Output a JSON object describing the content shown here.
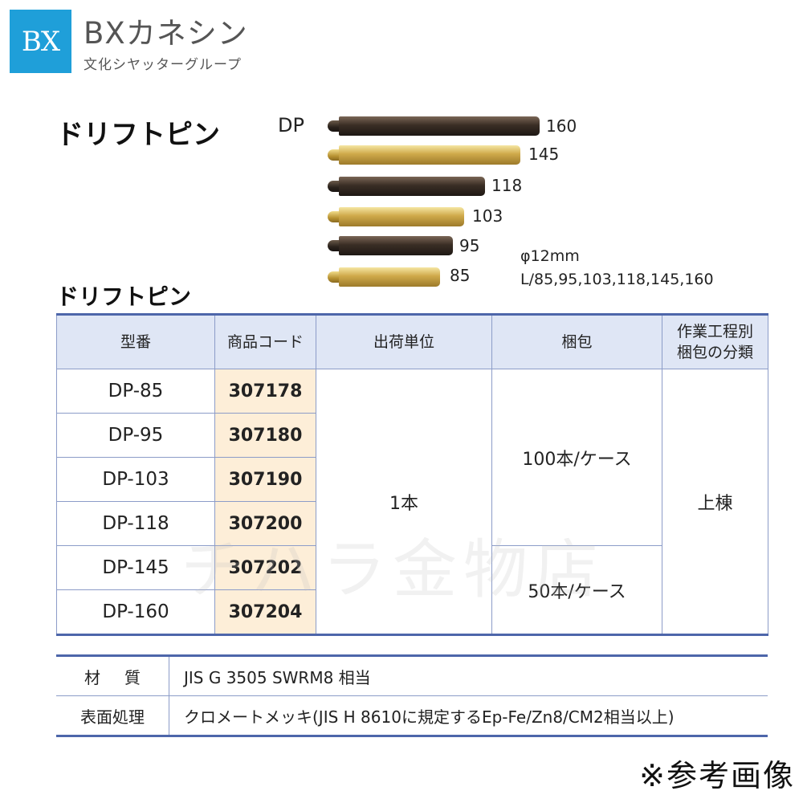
{
  "brand": {
    "logo_text": "BX",
    "name": "BXカネシン",
    "subtitle": "文化シヤッターグループ",
    "logo_color": "#1f9fd9"
  },
  "product": {
    "title": "ドリフトピン",
    "series_label": "DP",
    "pins": [
      {
        "length": "160",
        "finish": "dark"
      },
      {
        "length": "145",
        "finish": "gold"
      },
      {
        "length": "118",
        "finish": "dark"
      },
      {
        "length": "103",
        "finish": "gold"
      },
      {
        "length": "95",
        "finish": "dark"
      },
      {
        "length": "85",
        "finish": "gold"
      }
    ],
    "diameter": "φ12mm",
    "lengths": "L/85,95,103,118,145,160"
  },
  "table": {
    "title": "ドリフトピン",
    "headers": {
      "model": "型番",
      "code": "商品コード",
      "unit": "出荷単位",
      "packing": "梱包",
      "category_line1": "作業工程別",
      "category_line2": "梱包の分類"
    },
    "rows": [
      {
        "model": "DP-85",
        "code": "307178"
      },
      {
        "model": "DP-95",
        "code": "307180"
      },
      {
        "model": "DP-103",
        "code": "307190"
      },
      {
        "model": "DP-118",
        "code": "307200"
      },
      {
        "model": "DP-145",
        "code": "307202"
      },
      {
        "model": "DP-160",
        "code": "307204"
      }
    ],
    "unit": "1本",
    "packing_a": "100本/ケース",
    "packing_b": "50本/ケース",
    "category": "上棟"
  },
  "spec": {
    "material_label": "材質",
    "material_value": "JIS G 3505 SWRM8 相当",
    "surface_label": "表面処理",
    "surface_value": "クロメートメッキ(JIS H 8610に規定するEp-Fe/Zn8/CM2相当以上)"
  },
  "note": "※参考画像",
  "watermark": "チハラ金物店"
}
